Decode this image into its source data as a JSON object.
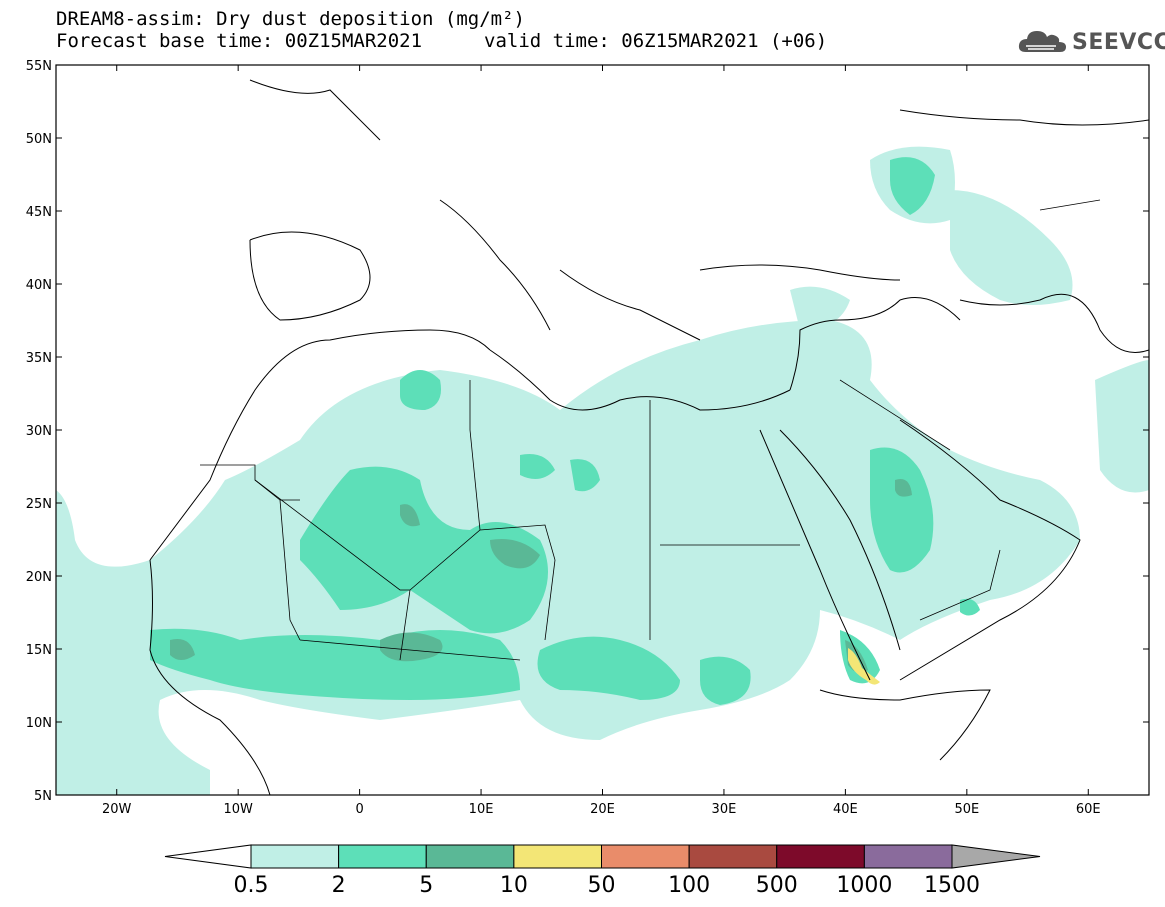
{
  "header": {
    "title_line1": "DREAM8-assim: Dry dust deposition (mg/m²)",
    "title_line2": "Forecast base time: 00Z15MAR2021",
    "valid_time": "valid time: 06Z15MAR2021 (+06)"
  },
  "logo": {
    "text": "SEEVCCC",
    "icon": "cloud-icon"
  },
  "map": {
    "lon_ticks": [
      {
        "value": -20,
        "label": "20W"
      },
      {
        "value": -10,
        "label": "10W"
      },
      {
        "value": 0,
        "label": "0"
      },
      {
        "value": 10,
        "label": "10E"
      },
      {
        "value": 20,
        "label": "20E"
      },
      {
        "value": 30,
        "label": "30E"
      },
      {
        "value": 40,
        "label": "40E"
      },
      {
        "value": 50,
        "label": "50E"
      },
      {
        "value": 60,
        "label": "60E"
      }
    ],
    "lat_ticks": [
      {
        "value": 55,
        "label": "55N"
      },
      {
        "value": 50,
        "label": "50N"
      },
      {
        "value": 45,
        "label": "45N"
      },
      {
        "value": 40,
        "label": "40N"
      },
      {
        "value": 35,
        "label": "35N"
      },
      {
        "value": 30,
        "label": "30N"
      },
      {
        "value": 25,
        "label": "25N"
      },
      {
        "value": 20,
        "label": "20N"
      },
      {
        "value": 15,
        "label": "15N"
      },
      {
        "value": 10,
        "label": "10N"
      },
      {
        "value": 5,
        "label": "5N"
      }
    ],
    "lon_range": [
      -25,
      65
    ],
    "lat_range": [
      5,
      55
    ]
  },
  "colorbar": {
    "labels": [
      "0.5",
      "2",
      "5",
      "10",
      "50",
      "100",
      "500",
      "1000",
      "1500"
    ],
    "colors": [
      "#c0efe6",
      "#5ddfb8",
      "#5ab896",
      "#f3e676",
      "#e98c6a",
      "#a94a40",
      "#7d0a2a",
      "#8a6b9c"
    ],
    "under_color": "#ffffff",
    "over_color": "#a8a8a8"
  }
}
